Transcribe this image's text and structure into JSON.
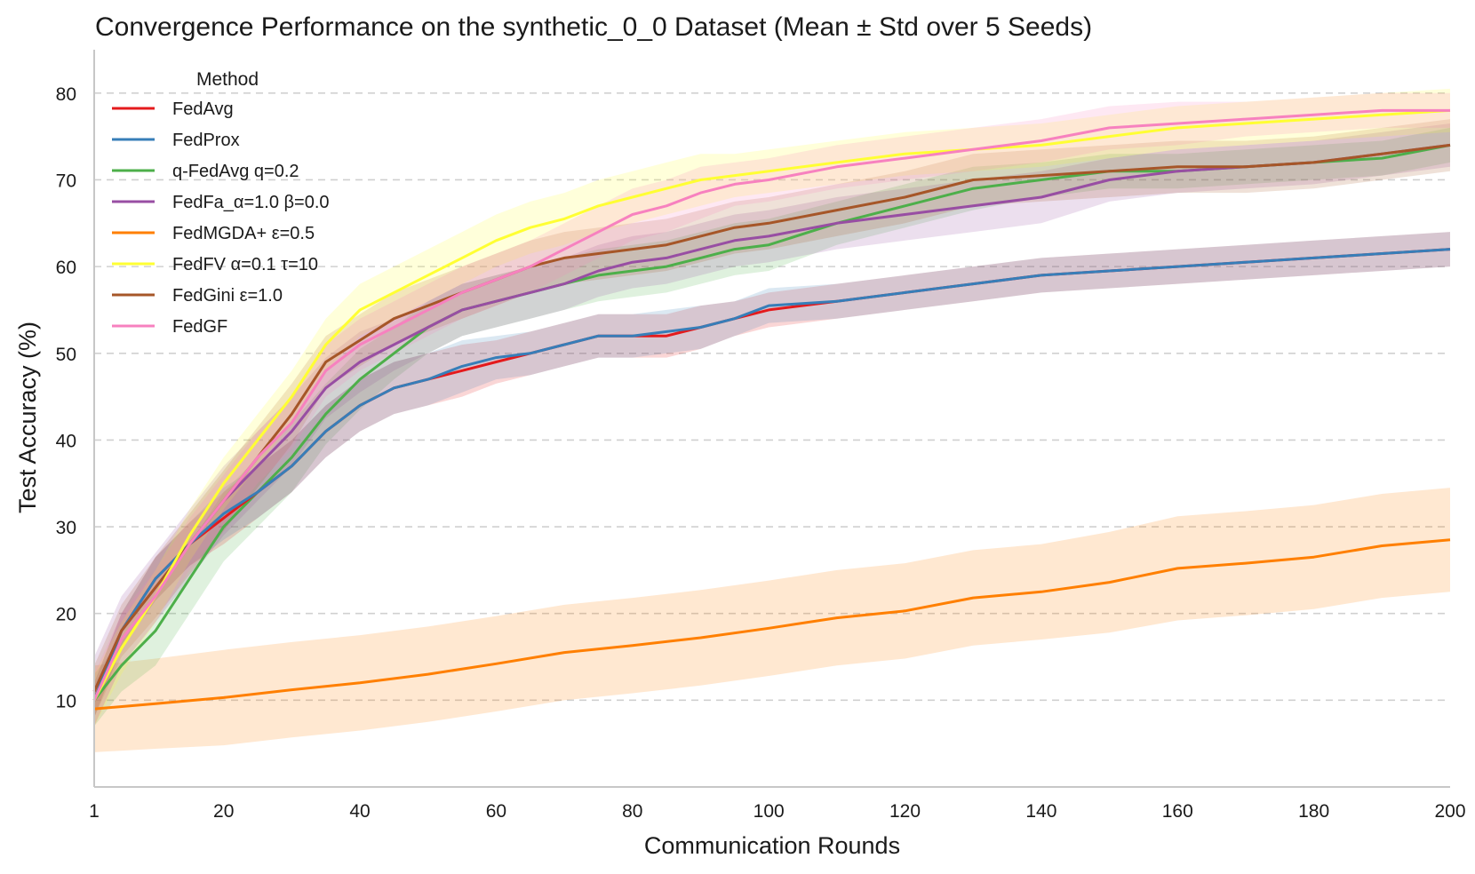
{
  "chart_data": {
    "type": "line",
    "title": "Convergence Performance on the synthetic_0_0 Dataset (Mean ± Std over 5 Seeds)",
    "xlabel": "Communication Rounds",
    "ylabel": "Test Accuracy (%)",
    "xlim": [
      1,
      200
    ],
    "ylim": [
      0,
      85
    ],
    "xticks": [
      1,
      20,
      40,
      60,
      80,
      100,
      120,
      140,
      160,
      180,
      200
    ],
    "yticks": [
      10,
      20,
      30,
      40,
      50,
      60,
      70,
      80
    ],
    "grid": "horizontal dashed",
    "legend": {
      "title": "Method",
      "placement": "upper-left"
    },
    "shaded_band": "mean ± std",
    "series": [
      {
        "name": "FedAvg",
        "color": "#e41a1c",
        "x": [
          1,
          5,
          10,
          15,
          20,
          25,
          30,
          35,
          40,
          45,
          50,
          55,
          60,
          65,
          70,
          75,
          80,
          85,
          90,
          95,
          100,
          110,
          120,
          130,
          140,
          150,
          160,
          170,
          180,
          190,
          200
        ],
        "y": [
          10,
          18,
          24,
          28,
          31,
          34,
          37,
          41,
          44,
          46,
          47,
          48,
          49,
          50,
          51,
          52,
          52,
          52,
          53,
          54,
          55,
          56,
          57,
          58,
          59,
          59.5,
          60,
          60.5,
          61,
          61.5,
          62
        ],
        "std": [
          2,
          2,
          2.5,
          2.5,
          3,
          3,
          3,
          3,
          3,
          3,
          3,
          3,
          2.5,
          2.5,
          2.5,
          2.5,
          2.5,
          2.5,
          2.5,
          2,
          2,
          2,
          2,
          2,
          2,
          2,
          2,
          2,
          2,
          2,
          2
        ]
      },
      {
        "name": "FedProx",
        "color": "#377eb8",
        "x": [
          1,
          5,
          10,
          15,
          20,
          25,
          30,
          35,
          40,
          45,
          50,
          55,
          60,
          65,
          70,
          75,
          80,
          85,
          90,
          95,
          100,
          110,
          120,
          130,
          140,
          150,
          160,
          170,
          180,
          190,
          200
        ],
        "y": [
          10,
          18,
          24,
          28,
          31.5,
          34,
          37,
          41,
          44,
          46,
          47,
          48.5,
          49.5,
          50,
          51,
          52,
          52,
          52.5,
          53,
          54,
          55.5,
          56,
          57,
          58,
          59,
          59.5,
          60,
          60.5,
          61,
          61.5,
          62
        ],
        "std": [
          2,
          2,
          2.5,
          2.5,
          3,
          3,
          3,
          3,
          3,
          3,
          3,
          3,
          2.5,
          2.5,
          2.5,
          2.5,
          2.5,
          2.5,
          2.5,
          2,
          2,
          2,
          2,
          2,
          2,
          2,
          2,
          2,
          2,
          2,
          2
        ]
      },
      {
        "name": "q-FedAvg q=0.2",
        "color": "#4daf4a",
        "x": [
          1,
          5,
          10,
          15,
          20,
          25,
          30,
          35,
          40,
          45,
          50,
          55,
          60,
          65,
          70,
          75,
          80,
          85,
          90,
          95,
          100,
          110,
          120,
          130,
          140,
          150,
          160,
          170,
          180,
          190,
          200
        ],
        "y": [
          10,
          14,
          18,
          24,
          30,
          34,
          38,
          43,
          47,
          50,
          53,
          55,
          56,
          57,
          58,
          59,
          59.5,
          60,
          61,
          62,
          62.5,
          65,
          67,
          69,
          70,
          71,
          71,
          71.5,
          72,
          72.5,
          74
        ],
        "std": [
          3,
          3,
          4,
          4,
          4,
          4,
          4,
          3.5,
          3.5,
          3,
          3,
          3,
          3,
          3,
          3,
          3,
          3,
          3,
          3,
          3,
          3,
          2.5,
          2.5,
          2.5,
          2,
          2,
          2,
          2,
          2,
          2,
          2
        ]
      },
      {
        "name": "FedFa_α=1.0 β=0.0",
        "color": "#984ea3",
        "x": [
          1,
          5,
          10,
          15,
          20,
          25,
          30,
          35,
          40,
          45,
          50,
          55,
          60,
          65,
          70,
          75,
          80,
          85,
          90,
          95,
          100,
          110,
          120,
          130,
          140,
          150,
          160,
          170,
          180,
          190,
          200
        ],
        "y": [
          11,
          18,
          23,
          28,
          33,
          37,
          41,
          46,
          49,
          51,
          53,
          55,
          56,
          57,
          58,
          59.5,
          60.5,
          61,
          62,
          63,
          63.5,
          65,
          66,
          67,
          68,
          70,
          71,
          71.5,
          72,
          73,
          74
        ],
        "std": [
          4,
          4,
          4,
          4,
          4,
          4,
          4,
          3.5,
          3.5,
          3,
          3,
          3,
          3,
          3,
          3,
          3,
          3,
          3,
          3,
          3,
          3,
          3,
          3,
          3,
          3,
          2.5,
          2.5,
          2.5,
          2.5,
          2.5,
          2.5
        ]
      },
      {
        "name": "FedMGDA+ ε=0.5",
        "color": "#ff7f00",
        "x": [
          1,
          10,
          20,
          30,
          40,
          50,
          60,
          70,
          80,
          90,
          100,
          110,
          120,
          130,
          140,
          150,
          160,
          170,
          180,
          190,
          200
        ],
        "y": [
          9,
          9.6,
          10.3,
          11.2,
          12,
          13,
          14.2,
          15.5,
          16.3,
          17.2,
          18.3,
          19.5,
          20.3,
          21.8,
          22.5,
          23.6,
          25.2,
          25.8,
          26.5,
          27.8,
          28.5
        ],
        "std": [
          5,
          5.2,
          5.5,
          5.5,
          5.5,
          5.5,
          5.5,
          5.5,
          5.5,
          5.5,
          5.5,
          5.5,
          5.5,
          5.5,
          5.5,
          5.8,
          6,
          6,
          6,
          6,
          6
        ]
      },
      {
        "name": "FedFV α=0.1 τ=10",
        "color": "#ffff33",
        "x": [
          1,
          5,
          10,
          15,
          20,
          25,
          30,
          35,
          40,
          45,
          50,
          55,
          60,
          65,
          70,
          75,
          80,
          85,
          90,
          95,
          100,
          110,
          120,
          130,
          140,
          150,
          160,
          170,
          180,
          190,
          200
        ],
        "y": [
          10,
          16,
          22,
          29,
          35,
          40,
          45,
          51,
          55,
          57,
          59,
          61,
          63,
          64.5,
          65.5,
          67,
          68,
          69,
          70,
          70.5,
          71,
          72,
          73,
          73.5,
          74,
          75,
          76,
          76.5,
          77,
          77.5,
          78
        ],
        "std": [
          3,
          3,
          3,
          3,
          3,
          3,
          3,
          3,
          3,
          3,
          3,
          3,
          3,
          3,
          3,
          3,
          3,
          3,
          3,
          2.5,
          2.5,
          2.5,
          2.5,
          2.5,
          2.5,
          2.5,
          2.5,
          2.5,
          2.5,
          2.5,
          2.5
        ]
      },
      {
        "name": "FedGini ε=1.0",
        "color": "#a65628",
        "x": [
          1,
          5,
          10,
          15,
          20,
          25,
          30,
          35,
          40,
          45,
          50,
          55,
          60,
          65,
          70,
          75,
          80,
          85,
          90,
          95,
          100,
          110,
          120,
          130,
          140,
          150,
          160,
          170,
          180,
          190,
          200
        ],
        "y": [
          11,
          18,
          23,
          28,
          33,
          38,
          43,
          49,
          51.5,
          54,
          55.5,
          57,
          58.5,
          60,
          61,
          61.5,
          62,
          62.5,
          63.5,
          64.5,
          65,
          66.5,
          68,
          70,
          70.5,
          71,
          71.5,
          71.5,
          72,
          73,
          74
        ],
        "std": [
          3,
          3,
          3.5,
          3.5,
          3.5,
          3.5,
          3.5,
          3,
          3,
          3,
          3,
          3,
          3,
          3,
          3,
          3,
          3,
          3,
          3,
          3,
          3,
          3,
          3,
          3,
          3,
          3,
          3,
          3,
          3,
          3,
          3
        ]
      },
      {
        "name": "FedGF",
        "color": "#f781bf",
        "x": [
          1,
          5,
          10,
          15,
          20,
          25,
          30,
          35,
          40,
          45,
          50,
          55,
          60,
          65,
          70,
          75,
          80,
          85,
          90,
          95,
          100,
          110,
          120,
          130,
          140,
          150,
          160,
          170,
          180,
          190,
          200
        ],
        "y": [
          10,
          17,
          22,
          28,
          33,
          38,
          42,
          48,
          51,
          53,
          55,
          57,
          58.5,
          60,
          62,
          64,
          66,
          67,
          68.5,
          69.5,
          70,
          71.5,
          72.5,
          73.5,
          74.5,
          76,
          76.5,
          77,
          77.5,
          78,
          78
        ],
        "std": [
          3,
          3,
          3,
          3,
          3,
          3,
          3,
          3,
          3,
          3,
          3,
          3,
          3,
          3,
          3,
          3,
          3,
          3,
          3,
          2.5,
          2.5,
          2.5,
          2.5,
          2.5,
          2.5,
          2.5,
          2.5,
          2,
          2,
          2,
          2
        ]
      }
    ]
  }
}
